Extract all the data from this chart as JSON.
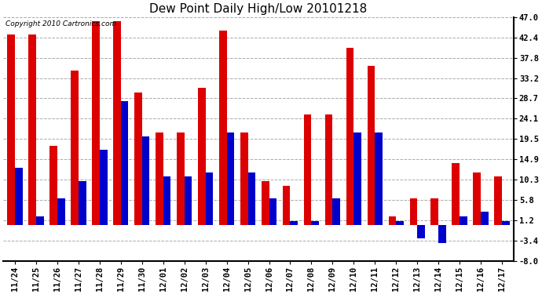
{
  "title": "Dew Point Daily High/Low 20101218",
  "copyright": "Copyright 2010 Cartronics.com",
  "categories": [
    "11/24",
    "11/25",
    "11/26",
    "11/27",
    "11/28",
    "11/29",
    "11/30",
    "12/01",
    "12/02",
    "12/03",
    "12/04",
    "12/05",
    "12/06",
    "12/07",
    "12/08",
    "12/09",
    "12/10",
    "12/11",
    "12/12",
    "12/13",
    "12/14",
    "12/15",
    "12/16",
    "12/17"
  ],
  "high_values": [
    43,
    43,
    18,
    35,
    46,
    46,
    30,
    21,
    21,
    31,
    44,
    21,
    10,
    9,
    25,
    25,
    40,
    36,
    2,
    6,
    6,
    14,
    12,
    11
  ],
  "low_values": [
    13,
    2,
    6,
    10,
    17,
    28,
    20,
    11,
    11,
    12,
    21,
    12,
    6,
    1,
    1,
    6,
    21,
    21,
    1,
    -3,
    -4,
    2,
    3,
    1
  ],
  "high_color": "#dd0000",
  "low_color": "#0000cc",
  "ylim": [
    -8.0,
    47.0
  ],
  "yticks": [
    -8.0,
    -3.4,
    1.2,
    5.8,
    10.3,
    14.9,
    19.5,
    24.1,
    28.7,
    33.2,
    37.8,
    42.4,
    47.0
  ],
  "background_color": "#ffffff",
  "plot_bg_color": "#ffffff",
  "grid_color": "#aaaaaa",
  "title_fontsize": 11,
  "tick_fontsize": 7.5,
  "bar_width": 0.36,
  "figwidth": 6.9,
  "figheight": 3.75,
  "dpi": 100
}
